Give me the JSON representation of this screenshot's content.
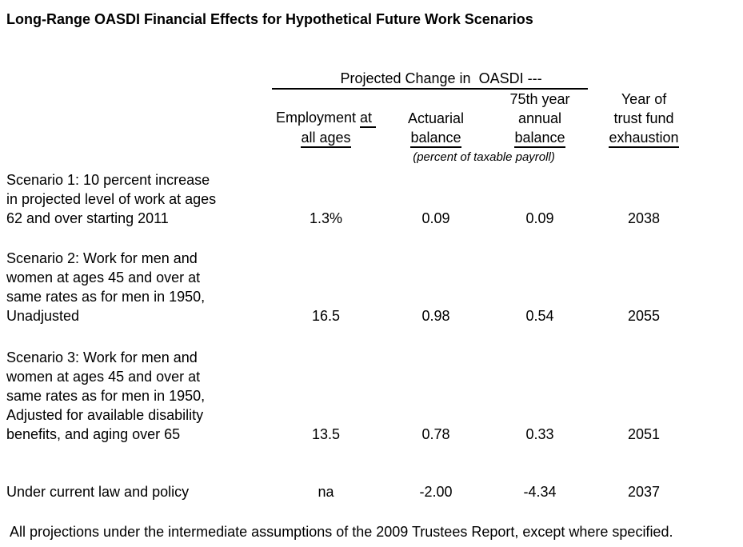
{
  "title": "Long-Range OASDI Financial Effects for Hypothetical Future Work Scenarios",
  "table": {
    "group_header": "Projected Change in  OASDI ---",
    "unit_note": "(percent of taxable payroll)",
    "columns": {
      "employment": {
        "line1_plain": "Employment",
        "line1_underlined": "at",
        "line2_underlined": "all ages"
      },
      "actuarial": {
        "line1": "Actuarial",
        "line2_underlined": "balance"
      },
      "annual75": {
        "line1": "75th year",
        "line2": "annual",
        "line3_underlined": "balance"
      },
      "exhaustion": {
        "line1": "Year of",
        "line2": "trust fund",
        "line3_underlined": "exhaustion"
      }
    },
    "rows": [
      {
        "label_lines": [
          "Scenario 1: 10 percent increase",
          "in projected level of work at ages",
          "62 and over starting 2011"
        ],
        "employment": "1.3%",
        "actuarial": "0.09",
        "annual75": "0.09",
        "exhaustion": "2038"
      },
      {
        "label_lines": [
          "Scenario 2: Work for men and",
          "women at ages 45 and over at",
          "same rates as for men in 1950,",
          "Unadjusted"
        ],
        "employment": "16.5",
        "actuarial": "0.98",
        "annual75": "0.54",
        "exhaustion": "2055"
      },
      {
        "label_lines": [
          "Scenario 3: Work for men and",
          "women at ages 45 and over at",
          "same rates as for men in 1950,",
          "Adjusted for available disability",
          "benefits, and aging over 65"
        ],
        "employment": "13.5",
        "actuarial": "0.78",
        "annual75": "0.33",
        "exhaustion": "2051"
      },
      {
        "label_lines": [
          "Under current law and policy"
        ],
        "employment": "na",
        "actuarial": "-2.00",
        "annual75": "-4.34",
        "exhaustion": "2037"
      }
    ]
  },
  "footnote": "All projections under the intermediate assumptions of the 2009 Trustees Report, except where specified."
}
